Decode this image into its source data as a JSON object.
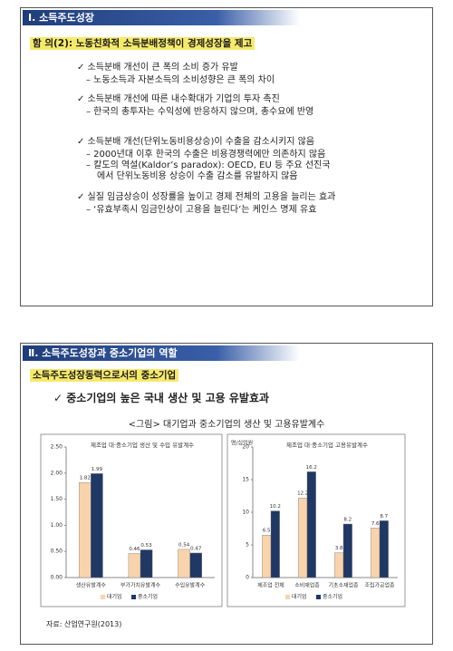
{
  "slides": [
    {
      "header": "Ⅰ. 소득주도성장",
      "subtitle": "함 의(2): 노동친화적 소득분배정책이 경제성장을 제고",
      "bullets": [
        {
          "text": "✓ 소득분배 개선이 큰 폭의 소비 증가 유발",
          "subs": [
            "– 노동소득과 자본소득의 소비성향은 큰 폭의 차이"
          ]
        },
        {
          "text": "✓ 소득분배 개선에 따른 내수확대가 기업의 투자 촉진",
          "subs": [
            "– 한국의 총투자는 수익성에 반응하지 않으며, 총수요에 반영"
          ]
        },
        {
          "text": "✓ 소득분배 개선(단위노동비용상승)이 수출을 감소시키지 않음",
          "subs": [
            "– 2000년대 이후 한국의 수출은 비용경쟁력에만 의존하지 않음",
            "– 칼도의 역설(Kaldor’s paradox): OECD, EU 등 주요 선진국",
            "에서 단위노동비용 상승이 수출 감소를 유발하지 않음"
          ]
        },
        {
          "text": "✓ 실질 임금상승이 성장률을 높이고 경제 전체의 고용을 늘리는 효과",
          "subs": [
            "– ‘유효부족시 임금인상이 고용을 늘린다’는 케인스 명제 유효"
          ]
        }
      ]
    },
    {
      "header": "Ⅱ. 소득주도성장과 중소기업의 역할",
      "subtitle": "소득주도성장동력으로서의 중소기업",
      "bullets": [
        {
          "text": "✓ 중소기업의 높은 국내 생산 및 고용 유발효과",
          "subs": []
        }
      ],
      "caption": "<그림> 대기업과 중소기업의 생산 및 고용유발계수",
      "source": "자료: 산업연구원(2013)"
    }
  ],
  "chart_data": [
    {
      "type": "bar",
      "title": "제조업 대·중소기업 생산 및 수입 유발계수",
      "categories": [
        "생산유발계수",
        "부가가치유발계수",
        "수입유발계수"
      ],
      "series": [
        {
          "name": "대기업",
          "color": "#f9d3ac",
          "values": [
            1.82,
            0.46,
            0.54
          ]
        },
        {
          "name": "중소기업",
          "color": "#1f3864",
          "values": [
            1.99,
            0.53,
            0.47
          ]
        }
      ],
      "ylim": [
        0,
        2.5
      ],
      "yticks": [
        {
          "value": 0,
          "label": "0.00"
        },
        {
          "value": 0.5,
          "label": "0.50"
        },
        {
          "value": 1,
          "label": "1.00"
        },
        {
          "value": 1.5,
          "label": "1.50"
        },
        {
          "value": 2,
          "label": "2.00"
        },
        {
          "value": 2.5,
          "label": "2.50"
        }
      ],
      "legend": "bottom"
    },
    {
      "type": "bar",
      "title": "제조업 대·중소기업 고용유발계수",
      "y_unit": "명/십억원",
      "categories": [
        "제조업 전체",
        "소비재업종",
        "기초소재업종",
        "조립가공업종"
      ],
      "series": [
        {
          "name": "대기업",
          "color": "#f9d3ac",
          "values": [
            6.5,
            12.2,
            3.8,
            7.6
          ]
        },
        {
          "name": "중소기업",
          "color": "#1f3864",
          "values": [
            10.2,
            16.2,
            8.2,
            8.7
          ]
        }
      ],
      "ylim": [
        0,
        20
      ],
      "yticks": [
        0,
        5,
        10,
        15,
        20
      ],
      "legend": "bottom"
    }
  ]
}
